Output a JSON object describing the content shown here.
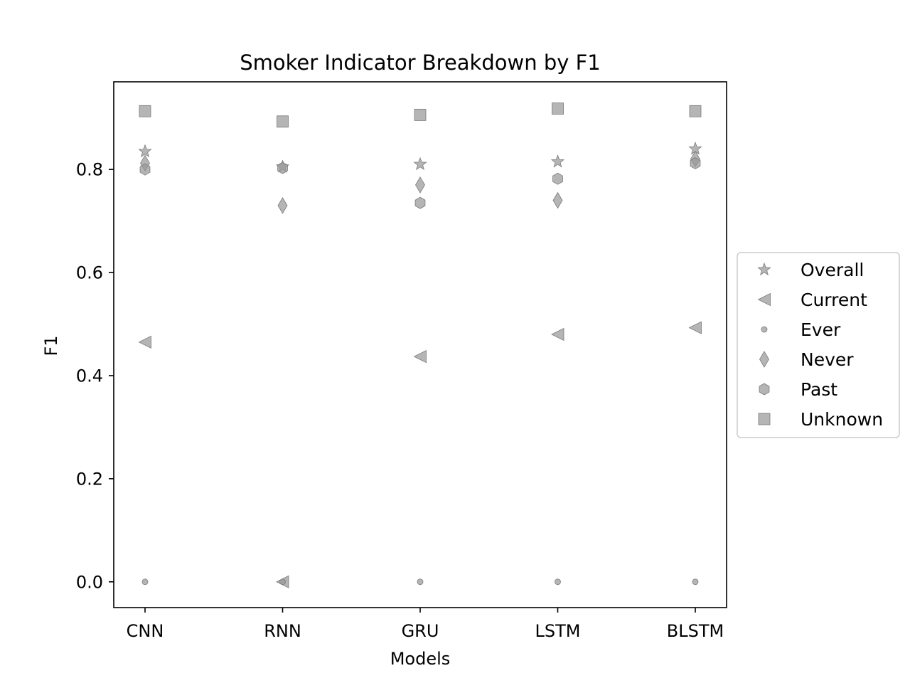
{
  "chart_data": {
    "type": "scatter",
    "title": "Smoker Indicator Breakdown by F1",
    "xlabel": "Models",
    "ylabel": "F1",
    "categories": [
      "CNN",
      "RNN",
      "GRU",
      "LSTM",
      "BLSTM"
    ],
    "ylim": [
      -0.05,
      0.97
    ],
    "yticks": [
      0.0,
      0.2,
      0.4,
      0.6,
      0.8
    ],
    "ytick_labels": [
      "0.0",
      "0.2",
      "0.4",
      "0.6",
      "0.8"
    ],
    "grid": false,
    "legend_position": "right",
    "marker_color": "#999999",
    "series": [
      {
        "name": "Overall",
        "marker": "star",
        "values": [
          0.835,
          0.805,
          0.81,
          0.815,
          0.84
        ]
      },
      {
        "name": "Current",
        "marker": "triangle-left",
        "values": [
          0.465,
          0.0,
          0.437,
          0.48,
          0.493
        ]
      },
      {
        "name": "Ever",
        "marker": "circle",
        "values": [
          0.0,
          0.0,
          0.0,
          0.0,
          0.0
        ]
      },
      {
        "name": "Never",
        "marker": "thin-diamond",
        "values": [
          0.812,
          0.73,
          0.77,
          0.74,
          0.82
        ]
      },
      {
        "name": "Past",
        "marker": "hexagon",
        "values": [
          0.8,
          0.803,
          0.735,
          0.782,
          0.812
        ]
      },
      {
        "name": "Unknown",
        "marker": "square",
        "values": [
          0.913,
          0.893,
          0.906,
          0.918,
          0.913
        ]
      }
    ]
  }
}
